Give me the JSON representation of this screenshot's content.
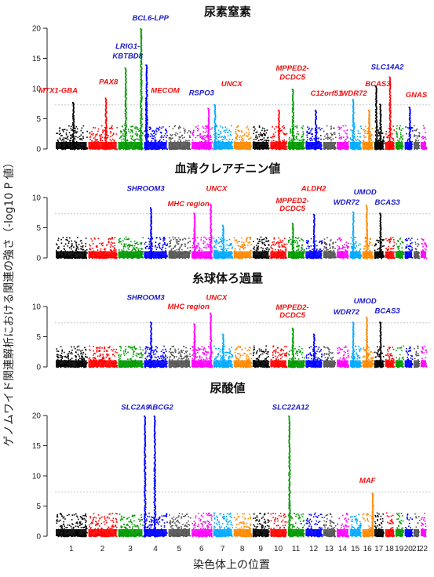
{
  "chart_data": {
    "type": "scatter",
    "subtype": "manhattan",
    "y_axis_label": "ゲノムワイド関連解析における関連の強さ（-log10 P 値）",
    "x_axis_label": "染色体上の位置",
    "chromosomes": [
      "1",
      "2",
      "3",
      "4",
      "5",
      "6",
      "7",
      "8",
      "9",
      "10",
      "11",
      "12",
      "13",
      "14",
      "15",
      "16",
      "17",
      "18",
      "19",
      "20",
      "21",
      "22"
    ],
    "chromosome_colors": [
      "#000000",
      "#ff0000",
      "#009900",
      "#0000ff",
      "#555555",
      "#ff00ff",
      "#00aaff",
      "#ff8800",
      "#000000",
      "#ff0000",
      "#009900",
      "#0000ff",
      "#555555",
      "#ff00ff",
      "#00aaff",
      "#ff8800",
      "#000000",
      "#ff0000",
      "#009900",
      "#0000ff",
      "#555555",
      "#ff00ff"
    ],
    "significance_threshold": 7.3,
    "label_colors": {
      "red": "#ee1111",
      "blue": "#1a1acc"
    },
    "panels": [
      {
        "title": "尿素窒素",
        "ylim": [
          0,
          20
        ],
        "yticks": [
          0,
          5,
          10,
          15,
          20
        ],
        "peaks": [
          {
            "chr": 1,
            "pos": 0.55,
            "y": 7.8
          },
          {
            "chr": 2,
            "pos": 0.6,
            "y": 8.5
          },
          {
            "chr": 3,
            "pos": 0.3,
            "y": 13.5
          },
          {
            "chr": 3,
            "pos": 0.9,
            "y": 20.0
          },
          {
            "chr": 4,
            "pos": 0.12,
            "y": 14.0
          },
          {
            "chr": 4,
            "pos": 0.1,
            "y": 8.5
          },
          {
            "chr": 6,
            "pos": 0.8,
            "y": 6.8
          },
          {
            "chr": 7,
            "pos": 0.1,
            "y": 7.4
          },
          {
            "chr": 10,
            "pos": 0.5,
            "y": 6.5
          },
          {
            "chr": 11,
            "pos": 0.3,
            "y": 10.0
          },
          {
            "chr": 12,
            "pos": 0.6,
            "y": 6.5
          },
          {
            "chr": 15,
            "pos": 0.3,
            "y": 8.3
          },
          {
            "chr": 16,
            "pos": 0.6,
            "y": 6.5
          },
          {
            "chr": 17,
            "pos": 0.2,
            "y": 10.5
          },
          {
            "chr": 17,
            "pos": 0.6,
            "y": 7.5
          },
          {
            "chr": 18,
            "pos": 0.5,
            "y": 12.0
          },
          {
            "chr": 20,
            "pos": 0.6,
            "y": 7.0
          }
        ],
        "labels": [
          {
            "text": "MTX1-GBA",
            "color": "red",
            "chr": 1,
            "pos": 0.1,
            "y": 9.3
          },
          {
            "text": "PAX8",
            "color": "red",
            "chr": 2,
            "pos": 0.7,
            "y": 10.7
          },
          {
            "text": "LRIG1-",
            "color": "blue",
            "chr": 3,
            "pos": 0.4,
            "y": 16.6
          },
          {
            "text": "KBTBD8",
            "color": "blue",
            "chr": 3,
            "pos": 0.4,
            "y": 15.0
          },
          {
            "text": "BCL6-LPP",
            "color": "blue",
            "chr": 4,
            "pos": 0.3,
            "y": 21.3
          },
          {
            "text": "MECOM",
            "color": "red",
            "chr": 4,
            "pos": 0.9,
            "y": 9.3
          },
          {
            "text": "RSPO3",
            "color": "blue",
            "chr": 6,
            "pos": 0.5,
            "y": 8.9
          },
          {
            "text": "UNCX",
            "color": "red",
            "chr": 7,
            "pos": 0.95,
            "y": 10.4
          },
          {
            "text": "MPPED2-",
            "color": "red",
            "chr": 11,
            "pos": 0.3,
            "y": 13.0
          },
          {
            "text": "DCDC5",
            "color": "red",
            "chr": 11,
            "pos": 0.3,
            "y": 11.5
          },
          {
            "text": "C12orf51",
            "color": "red",
            "chr": 13,
            "pos": 0.3,
            "y": 8.8
          },
          {
            "text": "WDR72",
            "color": "red",
            "chr": 15,
            "pos": 0.4,
            "y": 8.8
          },
          {
            "text": "BCAS3",
            "color": "red",
            "chr": 17,
            "pos": 0.4,
            "y": 10.4
          },
          {
            "text": "SLC14A2",
            "color": "blue",
            "chr": 18,
            "pos": 0.3,
            "y": 13.2
          },
          {
            "text": "GNAS",
            "color": "red",
            "chr": 21,
            "pos": 0.5,
            "y": 8.6
          }
        ]
      },
      {
        "title": "血清クレアチニン値",
        "ylim": [
          0,
          10
        ],
        "yticks": [
          0,
          5,
          10
        ],
        "peaks": [
          {
            "chr": 4,
            "pos": 0.3,
            "y": 8.4
          },
          {
            "chr": 6,
            "pos": 0.15,
            "y": 7.5
          },
          {
            "chr": 6,
            "pos": 0.9,
            "y": 9.0
          },
          {
            "chr": 7,
            "pos": 0.5,
            "y": 5.5
          },
          {
            "chr": 11,
            "pos": 0.3,
            "y": 5.8
          },
          {
            "chr": 12,
            "pos": 0.5,
            "y": 7.3
          },
          {
            "chr": 15,
            "pos": 0.3,
            "y": 7.7
          },
          {
            "chr": 16,
            "pos": 0.4,
            "y": 8.8
          },
          {
            "chr": 17,
            "pos": 0.6,
            "y": 7.5
          }
        ],
        "labels": [
          {
            "text": "SHROOM3",
            "color": "blue",
            "chr": 4,
            "pos": 0.1,
            "y": 11.1
          },
          {
            "text": "UNCX",
            "color": "red",
            "chr": 7,
            "pos": 0.2,
            "y": 11.1
          },
          {
            "text": "MHC region",
            "color": "red",
            "chr": 5,
            "pos": 0.9,
            "y": 8.6
          },
          {
            "text": "ALDH2",
            "color": "red",
            "chr": 12,
            "pos": 0.5,
            "y": 11.1
          },
          {
            "text": "MPPED2-",
            "color": "red",
            "chr": 11,
            "pos": 0.3,
            "y": 9.1
          },
          {
            "text": "DCDC5",
            "color": "red",
            "chr": 11,
            "pos": 0.3,
            "y": 7.8
          },
          {
            "text": "UMOD",
            "color": "blue",
            "chr": 16,
            "pos": 0.3,
            "y": 10.5
          },
          {
            "text": "WDR72",
            "color": "blue",
            "chr": 14,
            "pos": 0.8,
            "y": 8.8
          },
          {
            "text": "BCAS3",
            "color": "blue",
            "chr": 18,
            "pos": 0.3,
            "y": 8.8
          }
        ]
      },
      {
        "title": "糸球体ろ過量",
        "ylim": [
          0,
          10
        ],
        "yticks": [
          0,
          5,
          10
        ],
        "peaks": [
          {
            "chr": 4,
            "pos": 0.3,
            "y": 7.5
          },
          {
            "chr": 6,
            "pos": 0.15,
            "y": 7.2
          },
          {
            "chr": 6,
            "pos": 0.9,
            "y": 9.0
          },
          {
            "chr": 7,
            "pos": 0.5,
            "y": 5.5
          },
          {
            "chr": 11,
            "pos": 0.3,
            "y": 6.5
          },
          {
            "chr": 12,
            "pos": 0.5,
            "y": 5.5
          },
          {
            "chr": 15,
            "pos": 0.3,
            "y": 7.5
          },
          {
            "chr": 16,
            "pos": 0.4,
            "y": 8.3
          },
          {
            "chr": 17,
            "pos": 0.6,
            "y": 7.5
          }
        ],
        "labels": [
          {
            "text": "SHROOM3",
            "color": "blue",
            "chr": 4,
            "pos": 0.1,
            "y": 11.1
          },
          {
            "text": "UNCX",
            "color": "red",
            "chr": 7,
            "pos": 0.2,
            "y": 11.1
          },
          {
            "text": "MHC region",
            "color": "red",
            "chr": 5,
            "pos": 0.9,
            "y": 9.6
          },
          {
            "text": "MPPED2-",
            "color": "red",
            "chr": 11,
            "pos": 0.3,
            "y": 9.5
          },
          {
            "text": "DCDC5",
            "color": "red",
            "chr": 11,
            "pos": 0.3,
            "y": 8.2
          },
          {
            "text": "UMOD",
            "color": "blue",
            "chr": 16,
            "pos": 0.3,
            "y": 10.5
          },
          {
            "text": "WDR72",
            "color": "blue",
            "chr": 14,
            "pos": 0.8,
            "y": 8.7
          },
          {
            "text": "BCAS3",
            "color": "blue",
            "chr": 18,
            "pos": 0.3,
            "y": 8.9
          }
        ]
      },
      {
        "title": "尿酸値",
        "ylim": [
          0,
          20
        ],
        "yticks": [
          0,
          5,
          10,
          15,
          20
        ],
        "peaks": [
          {
            "chr": 4,
            "pos": 0.05,
            "y": 20.0
          },
          {
            "chr": 4,
            "pos": 0.45,
            "y": 20.0
          },
          {
            "chr": 11,
            "pos": 0.1,
            "y": 20.0
          },
          {
            "chr": 16,
            "pos": 0.9,
            "y": 7.2
          }
        ],
        "labels": [
          {
            "text": "SLC2A9",
            "color": "blue",
            "chr": 3,
            "pos": 0.7,
            "y": 21.0
          },
          {
            "text": "ABCG2",
            "color": "blue",
            "chr": 4,
            "pos": 0.7,
            "y": 21.0
          },
          {
            "text": "SLC22A12",
            "color": "blue",
            "chr": 11,
            "pos": 0.2,
            "y": 21.0
          },
          {
            "text": "MAF",
            "color": "red",
            "chr": 16,
            "pos": 0.5,
            "y": 8.8
          }
        ]
      }
    ]
  }
}
